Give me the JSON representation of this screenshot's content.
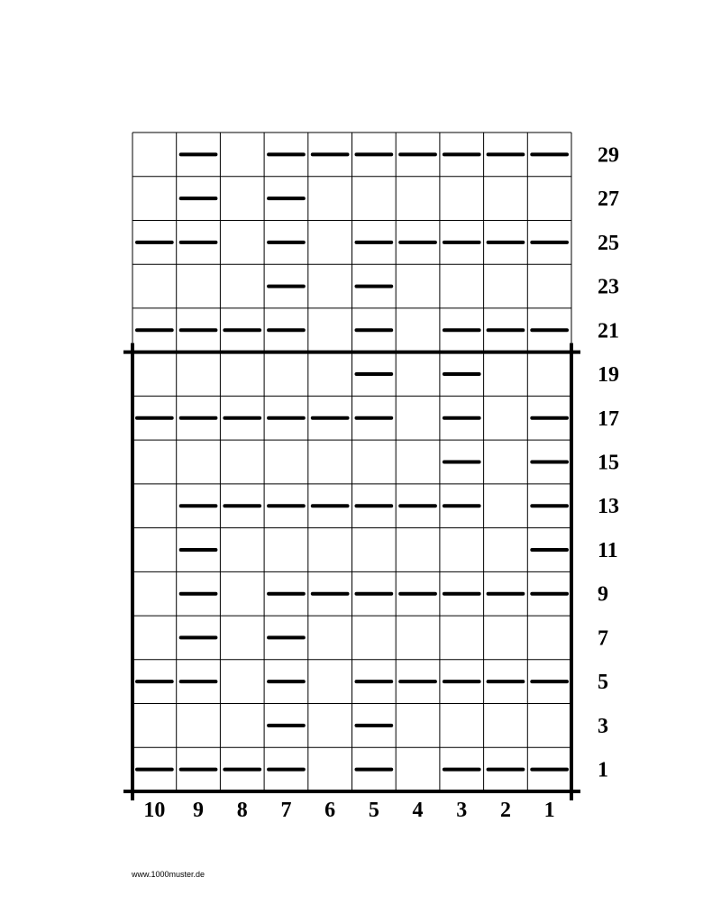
{
  "chart": {
    "columns": [
      "10",
      "9",
      "8",
      "7",
      "6",
      "5",
      "4",
      "3",
      "2",
      "1"
    ],
    "rows": [
      {
        "label": "29",
        "dashes": [
          "9",
          "7",
          "6",
          "5",
          "4",
          "3",
          "2",
          "1"
        ]
      },
      {
        "label": "27",
        "dashes": [
          "9",
          "7"
        ]
      },
      {
        "label": "25",
        "dashes": [
          "10",
          "9",
          "7",
          "5",
          "4",
          "3",
          "2",
          "1"
        ]
      },
      {
        "label": "23",
        "dashes": [
          "7",
          "5"
        ]
      },
      {
        "label": "21",
        "dashes": [
          "10",
          "9",
          "8",
          "7",
          "5",
          "3",
          "2",
          "1"
        ]
      },
      {
        "label": "19",
        "dashes": [
          "5",
          "3"
        ]
      },
      {
        "label": "17",
        "dashes": [
          "10",
          "9",
          "8",
          "7",
          "6",
          "5",
          "3",
          "1"
        ]
      },
      {
        "label": "15",
        "dashes": [
          "3",
          "1"
        ]
      },
      {
        "label": "13",
        "dashes": [
          "9",
          "8",
          "7",
          "6",
          "5",
          "4",
          "3",
          "1"
        ]
      },
      {
        "label": "11",
        "dashes": [
          "9",
          "1"
        ]
      },
      {
        "label": "9",
        "dashes": [
          "9",
          "7",
          "6",
          "5",
          "4",
          "3",
          "2",
          "1"
        ]
      },
      {
        "label": "7",
        "dashes": [
          "9",
          "7"
        ]
      },
      {
        "label": "5",
        "dashes": [
          "10",
          "9",
          "7",
          "5",
          "4",
          "3",
          "2",
          "1"
        ]
      },
      {
        "label": "3",
        "dashes": [
          "7",
          "5"
        ]
      },
      {
        "label": "1",
        "dashes": [
          "10",
          "9",
          "8",
          "7",
          "5",
          "3",
          "2",
          "1"
        ]
      }
    ],
    "repeat_box_rows": [
      "19",
      "1"
    ],
    "symbol": "dash",
    "colors": {
      "line": "#000000",
      "background": "#ffffff"
    }
  },
  "footer": {
    "url_text": "www.1000muster.de"
  }
}
